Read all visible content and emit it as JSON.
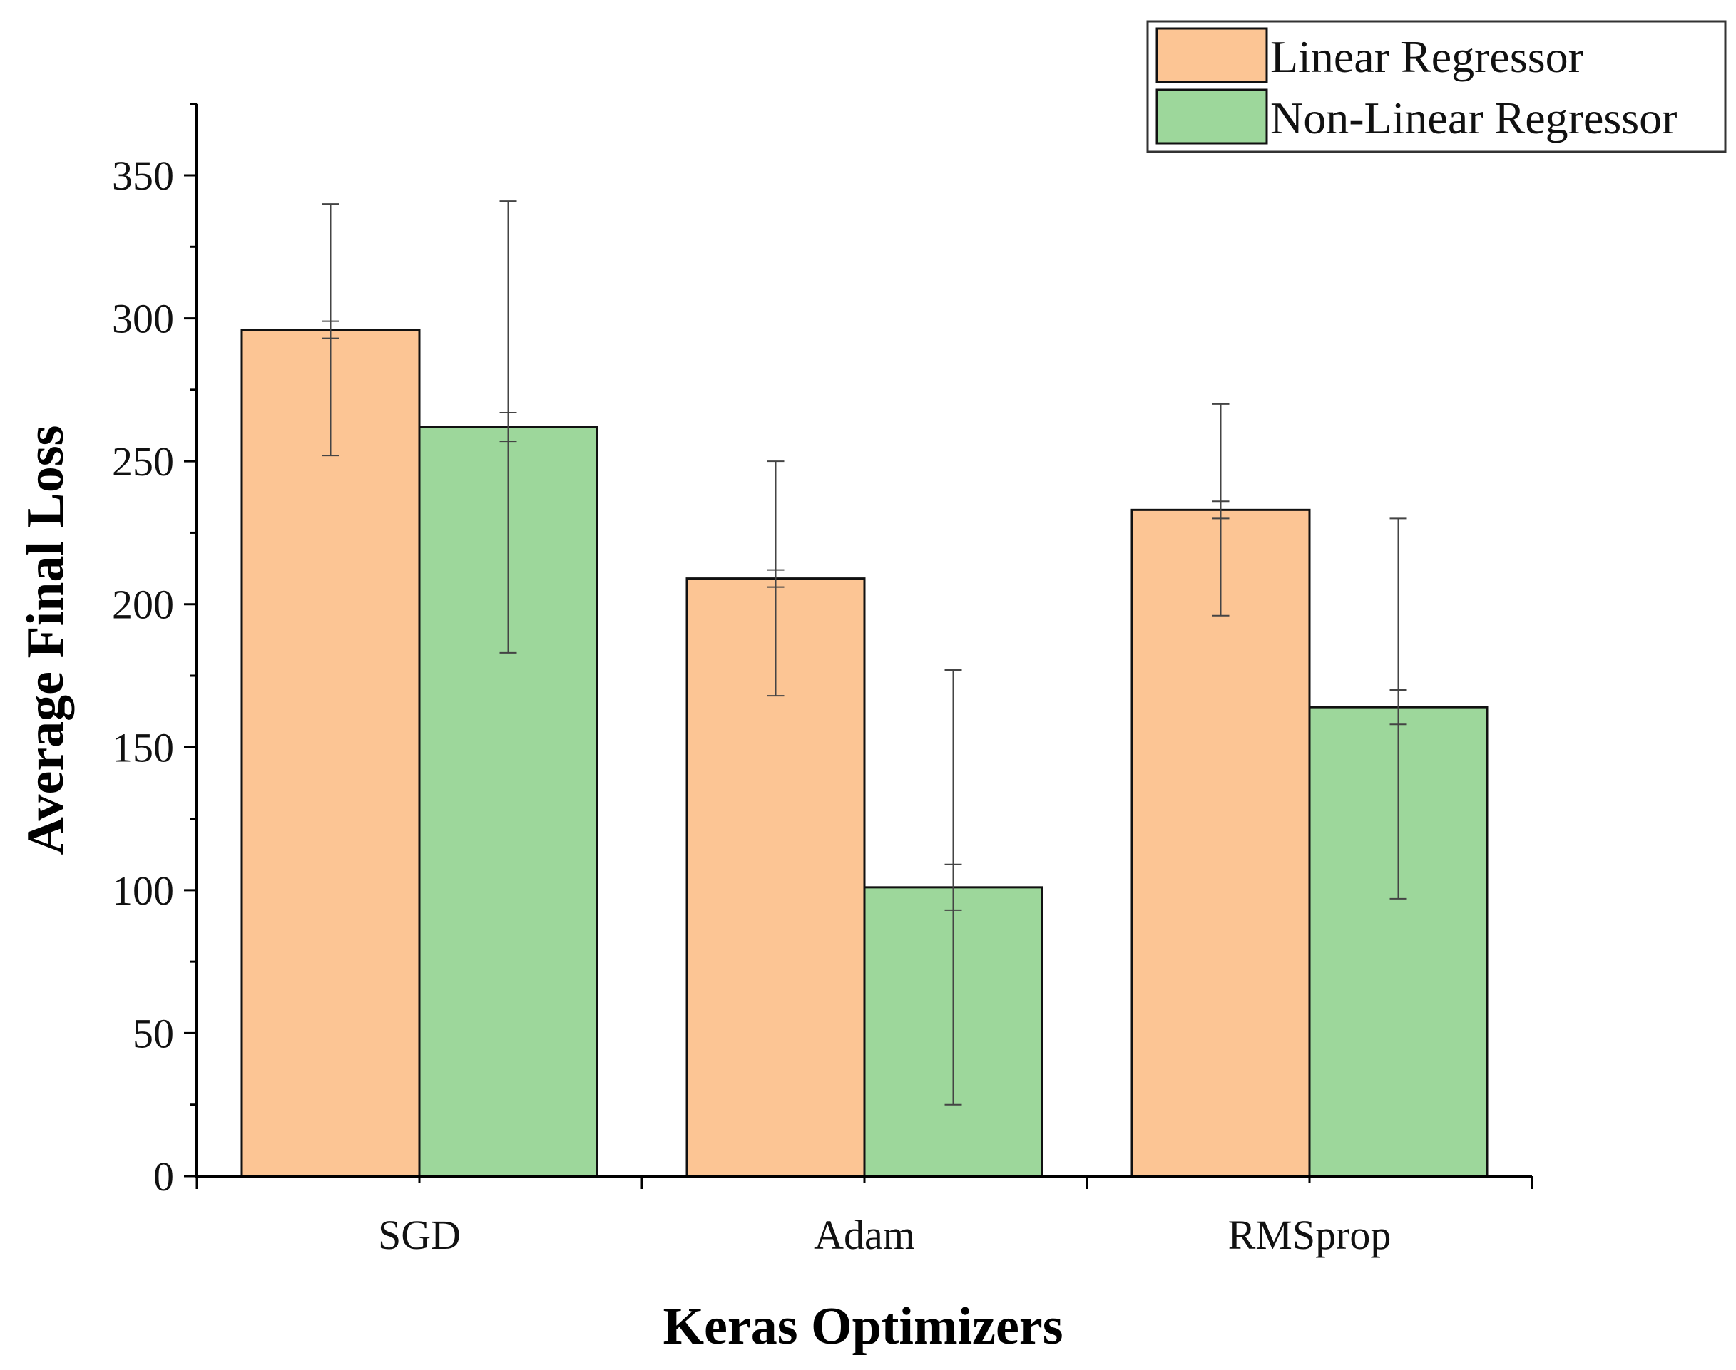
{
  "chart_data": {
    "type": "bar",
    "title": "",
    "xlabel": "Keras Optimizers",
    "ylabel": "Average Final Loss",
    "categories": [
      "SGD",
      "Adam",
      "RMSprop"
    ],
    "ylim": [
      0,
      375
    ],
    "yticks": [
      0,
      50,
      100,
      150,
      200,
      250,
      300,
      350
    ],
    "ytick_labels": [
      "0",
      "50",
      "100",
      "150",
      "200",
      "250",
      "300",
      "350"
    ],
    "minor_tick_step": 25,
    "grid": false,
    "legend_position": "top-right",
    "series": [
      {
        "name": "Linear Regressor",
        "color": "#FCC594",
        "values": [
          296,
          209,
          233
        ],
        "error_lower": [
          252,
          168,
          196
        ],
        "error_upper": [
          340,
          250,
          270
        ],
        "error_cap_lower": [
          293,
          206,
          230
        ],
        "error_cap_upper": [
          299,
          212,
          236
        ]
      },
      {
        "name": "Non-Linear Regressor",
        "color": "#9DD79B",
        "values": [
          262,
          101,
          164
        ],
        "error_lower": [
          183,
          25,
          97
        ],
        "error_upper": [
          341,
          177,
          230
        ],
        "error_cap_lower": [
          257,
          93,
          158
        ],
        "error_cap_upper": [
          267,
          109,
          170
        ]
      }
    ]
  }
}
